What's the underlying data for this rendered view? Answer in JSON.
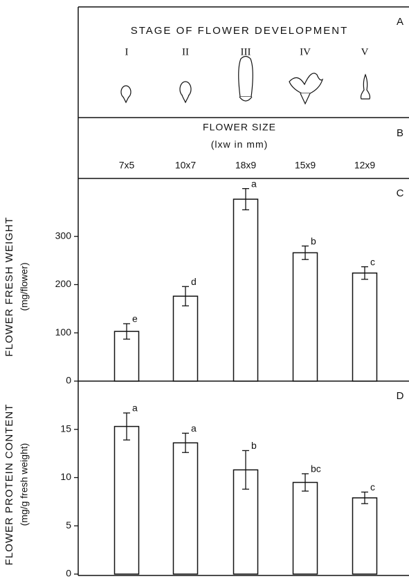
{
  "stage_panel": {
    "letter": "A",
    "title": "STAGE OF FLOWER DEVELOPMENT",
    "stages": [
      "I",
      "II",
      "III",
      "IV",
      "V"
    ]
  },
  "size_panel": {
    "letter": "B",
    "title": "FLOWER SIZE",
    "subtitle": "(lxw in mm)",
    "sizes": [
      "7x5",
      "10x7",
      "18x9",
      "15x9",
      "12x9"
    ]
  },
  "chart_data": [
    {
      "type": "bar",
      "letter": "C",
      "y_label": "FLOWER FRESH WEIGHT",
      "y_unit": "(mg/flower)",
      "values": [
        103,
        176,
        377,
        266,
        224
      ],
      "errors": [
        16,
        20,
        22,
        14,
        13
      ],
      "annotations": [
        "e",
        "d",
        "a",
        "b",
        "c"
      ],
      "color": "#ffffff",
      "ylim": [
        0,
        420
      ],
      "yticks": [
        0,
        100,
        200,
        300
      ]
    },
    {
      "type": "bar",
      "letter": "D",
      "y_label": "FLOWER PROTEIN CONTENT",
      "y_unit": "(mg/g fresh weight)",
      "values": [
        15.3,
        13.6,
        10.8,
        9.5,
        7.9
      ],
      "errors": [
        1.4,
        1.0,
        2.0,
        0.9,
        0.6
      ],
      "annotations": [
        "a",
        "a",
        "b",
        "bc",
        "c"
      ],
      "color": "#ffffff",
      "ylim": [
        0,
        20
      ],
      "yticks": [
        0,
        5,
        10,
        15
      ]
    }
  ]
}
